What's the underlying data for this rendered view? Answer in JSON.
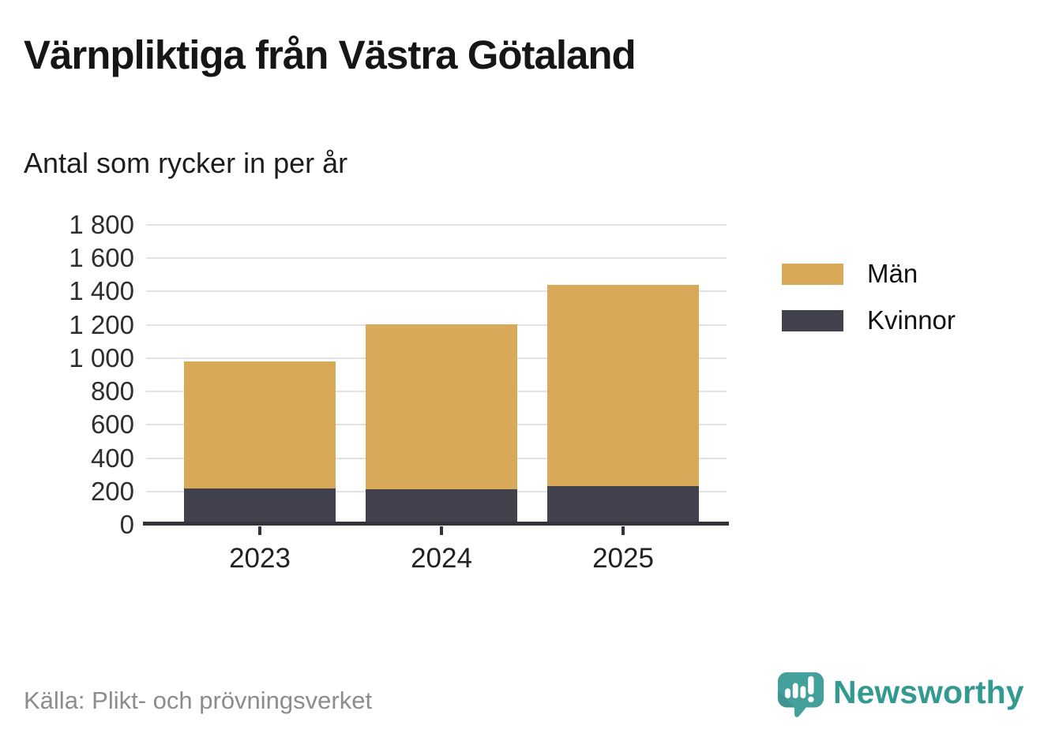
{
  "header": {
    "title": "Värnpliktiga från Västra Götaland",
    "subtitle": "Antal som rycker in per år"
  },
  "chart_data": {
    "type": "bar",
    "stacked": true,
    "title": "Värnpliktiga från Västra Götaland",
    "subtitle": "Antal som rycker in per år",
    "categories": [
      "2023",
      "2024",
      "2025"
    ],
    "series": [
      {
        "name": "Kvinnor",
        "color": "#42424f",
        "values": [
          220,
          215,
          230
        ]
      },
      {
        "name": "Män",
        "color": "#d9a95a",
        "values": [
          760,
          990,
          1210
        ]
      }
    ],
    "totals": [
      980,
      1205,
      1440
    ],
    "xlabel": "",
    "ylabel": "",
    "ylim": [
      0,
      1800
    ],
    "ytick_step": 200,
    "ytick_labels": [
      "0",
      "200",
      "400",
      "600",
      "800",
      "1 000",
      "1 200",
      "1 400",
      "1 600",
      "1 800"
    ],
    "grid": "horizontal",
    "legend_position": "right"
  },
  "legend": {
    "items": [
      {
        "label": "Män",
        "color": "#d9a95a"
      },
      {
        "label": "Kvinnor",
        "color": "#42424f"
      }
    ]
  },
  "source": {
    "text": "Källa: Plikt- och prövningsverket"
  },
  "branding": {
    "name": "Newsworthy",
    "teal": "#44a09a",
    "teal_dark": "#3a8b85",
    "text_teal": "#339a92"
  }
}
